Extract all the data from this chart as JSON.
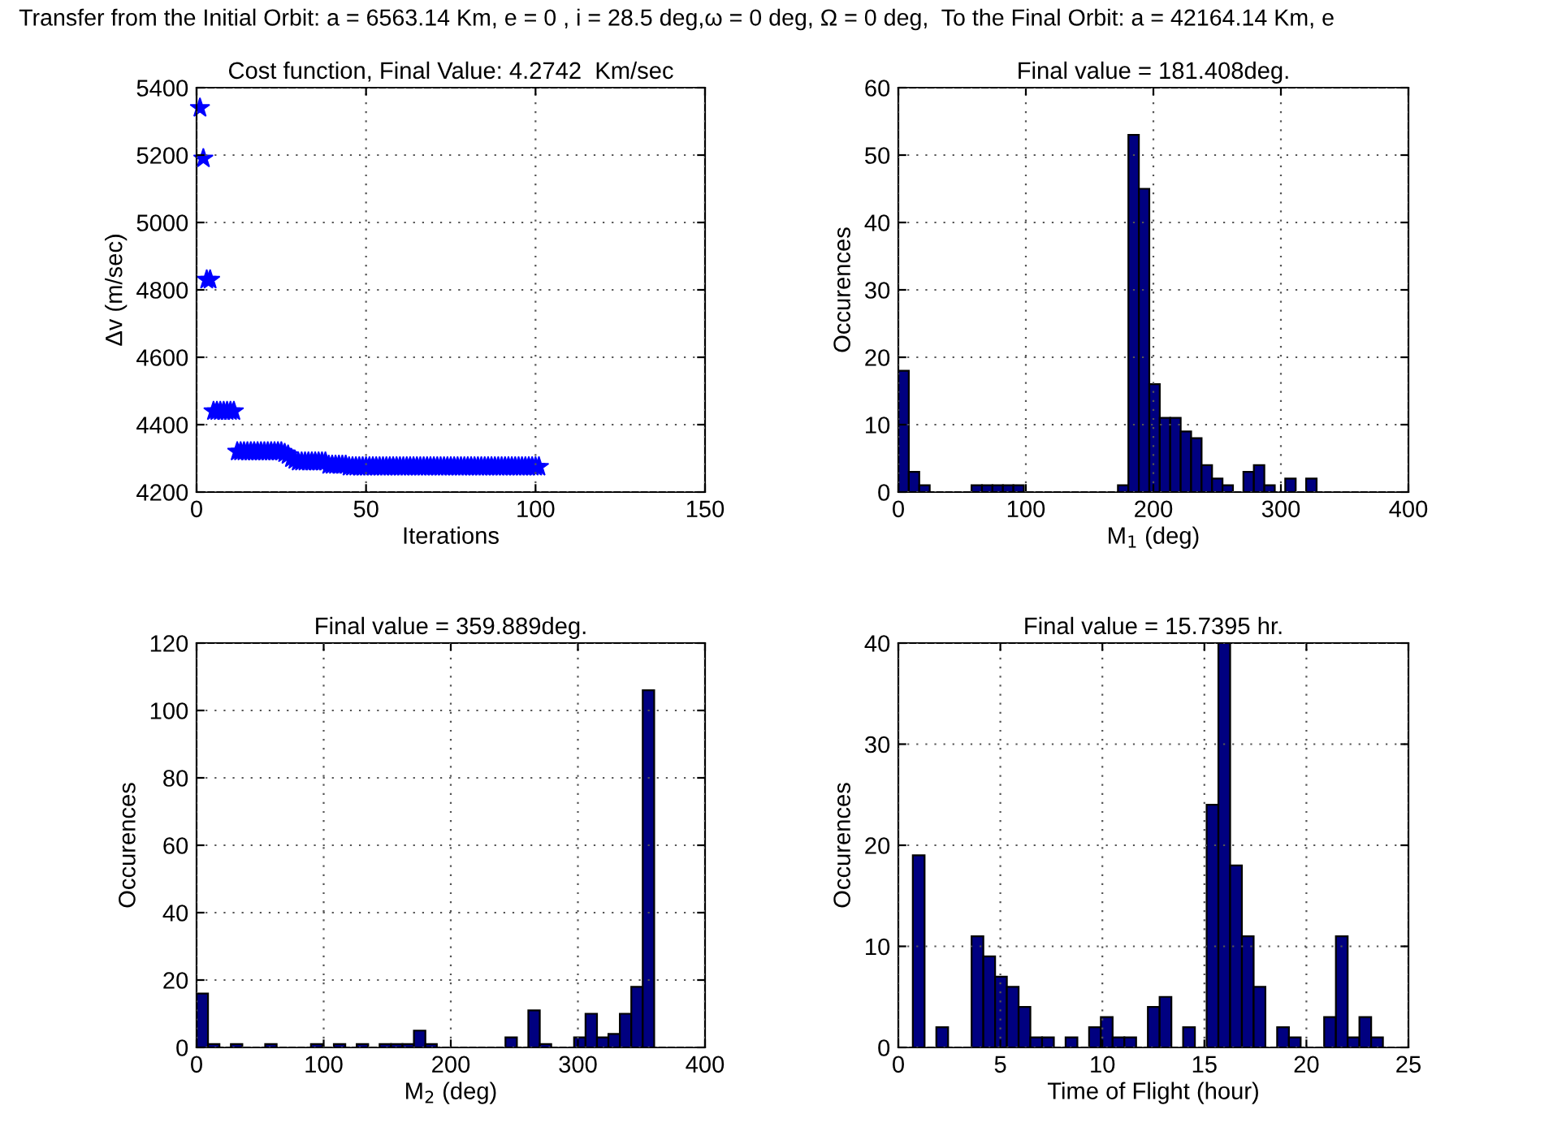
{
  "chart_data": [
    {
      "type": "other",
      "title": "Transfer from the Initial Orbit: a = 6563.14 Km, e = 0 , i = 28.5 deg,ω = 0 deg, Ω = 0 deg,  To the Final Orbit: a = 42164.14 Km, e"
    },
    {
      "type": "scatter",
      "title": "Cost function, Final Value: 4.2742  Km/sec",
      "xlabel": "Iterations",
      "ylabel": "Δv (m/sec)",
      "x": [
        1,
        2,
        3,
        4,
        5,
        6,
        7,
        8,
        9,
        10,
        11,
        12,
        13,
        14,
        15,
        16,
        17,
        18,
        19,
        20,
        21,
        22,
        23,
        24,
        25,
        26,
        27,
        28,
        29,
        30,
        31,
        32,
        33,
        34,
        35,
        36,
        37,
        38,
        39,
        40,
        41,
        42,
        43,
        44,
        45,
        46,
        47,
        48,
        49,
        50,
        51,
        52,
        53,
        54,
        55,
        56,
        57,
        58,
        59,
        60,
        61,
        62,
        63,
        64,
        65,
        66,
        67,
        68,
        69,
        70,
        71,
        72,
        73,
        74,
        75,
        76,
        77,
        78,
        79,
        80,
        81,
        82,
        83,
        84,
        85,
        86,
        87,
        88,
        89,
        90,
        91,
        92,
        93,
        94,
        95,
        96,
        97,
        98,
        99,
        100,
        101
      ],
      "series": [
        {
          "color": "#0000ff",
          "values": [
            5340,
            5190,
            4830,
            4830,
            4440,
            4440,
            4440,
            4440,
            4440,
            4440,
            4440,
            4320,
            4320,
            4320,
            4320,
            4320,
            4320,
            4320,
            4320,
            4320,
            4320,
            4320,
            4320,
            4320,
            4320,
            4315,
            4310,
            4300,
            4295,
            4290,
            4290,
            4290,
            4290,
            4290,
            4290,
            4290,
            4290,
            4290,
            4280,
            4280,
            4280,
            4280,
            4280,
            4280,
            4275,
            4275,
            4275,
            4275,
            4275,
            4275,
            4275,
            4275,
            4275,
            4275,
            4275,
            4275,
            4275,
            4275,
            4275,
            4275,
            4275,
            4275,
            4275,
            4275,
            4275,
            4275,
            4275,
            4275,
            4275,
            4275,
            4275,
            4275,
            4275,
            4275,
            4275,
            4275,
            4275,
            4275,
            4275,
            4275,
            4275,
            4275,
            4275,
            4275,
            4275,
            4275,
            4275,
            4275,
            4275,
            4275,
            4275,
            4275,
            4275,
            4275,
            4275,
            4275,
            4275,
            4275,
            4275,
            4275,
            4275
          ]
        }
      ],
      "marker": "star",
      "xlim": [
        0,
        150
      ],
      "xticks": [
        0,
        50,
        100,
        150
      ],
      "ylim": [
        4200,
        5400
      ],
      "yticks": [
        4200,
        4400,
        4600,
        4800,
        5000,
        5200,
        5400
      ],
      "grid": true
    },
    {
      "type": "histogram",
      "title": "Final value = 181.408deg.",
      "xlabel": "M$_{1}$ (deg)",
      "ylabel": "Occurences",
      "color": "#000080",
      "bins": [
        0,
        8.2,
        16.4,
        24.6,
        32.8,
        41,
        49.2,
        57.4,
        65.6,
        73.8,
        82,
        90.2,
        98.4,
        106.6,
        114.8,
        123,
        131.2,
        139.4,
        147.6,
        155.8,
        164,
        172.2,
        180.4,
        188.6,
        196.8,
        205,
        213.2,
        221.4,
        229.6,
        237.8,
        246,
        254.2,
        262.4,
        270.6,
        278.8,
        287,
        295.2,
        303.4,
        311.6,
        319.8,
        328
      ],
      "values": [
        18,
        3,
        1,
        0,
        0,
        0,
        0,
        1,
        1,
        1,
        1,
        1,
        0,
        0,
        0,
        0,
        0,
        0,
        0,
        0,
        0,
        1,
        53,
        45,
        16,
        11,
        11,
        9,
        8,
        4,
        2,
        1,
        0,
        3,
        4,
        1,
        0,
        2,
        0,
        2
      ],
      "xlim": [
        0,
        400
      ],
      "xticks": [
        0,
        100,
        200,
        300,
        400
      ],
      "ylim": [
        0,
        60
      ],
      "yticks": [
        0,
        10,
        20,
        30,
        40,
        50,
        60
      ],
      "grid": true
    },
    {
      "type": "histogram",
      "title": "Final value = 359.889deg.",
      "xlabel": "M$_{2}$ (deg)",
      "ylabel": "Occurences",
      "color": "#000080",
      "bins": [
        0,
        9,
        18,
        27,
        36,
        45,
        54,
        63,
        72,
        81,
        90,
        99,
        108,
        117,
        126,
        135,
        144,
        153,
        162,
        171,
        180,
        189,
        198,
        207,
        216,
        225,
        234,
        243,
        252,
        261,
        270,
        279,
        288,
        297,
        306,
        315,
        324,
        333,
        342,
        351,
        360
      ],
      "values": [
        16,
        1,
        0,
        1,
        0,
        0,
        1,
        0,
        0,
        0,
        1,
        0,
        1,
        0,
        1,
        0,
        1,
        1,
        1,
        5,
        1,
        0,
        0,
        0,
        0,
        0,
        0,
        3,
        0,
        11,
        1,
        0,
        0,
        3,
        10,
        3,
        4,
        10,
        18,
        106
      ],
      "xlim": [
        0,
        400
      ],
      "xticks": [
        0,
        100,
        200,
        300,
        400
      ],
      "ylim": [
        0,
        120
      ],
      "yticks": [
        0,
        20,
        40,
        60,
        80,
        100,
        120
      ],
      "grid": true
    },
    {
      "type": "histogram",
      "title": "Final value = 15.7395 hr.",
      "xlabel": "Time of Flight (hour)",
      "ylabel": "Occurences",
      "color": "#000080",
      "bins": [
        0.71,
        1.286,
        1.862,
        2.438,
        3.014,
        3.59,
        4.166,
        4.742,
        5.318,
        5.894,
        6.47,
        7.046,
        7.622,
        8.198,
        8.774,
        9.35,
        9.926,
        10.502,
        11.078,
        11.654,
        12.23,
        12.806,
        13.382,
        13.958,
        14.534,
        15.11,
        15.686,
        16.262,
        16.838,
        17.414,
        17.99,
        18.566,
        19.142,
        19.718,
        20.294,
        20.87,
        21.446,
        22.022,
        22.598,
        23.174,
        23.75
      ],
      "values": [
        19,
        0,
        2,
        0,
        0,
        11,
        9,
        7,
        6,
        4,
        1,
        1,
        0,
        1,
        0,
        2,
        3,
        1,
        1,
        0,
        4,
        5,
        0,
        2,
        0,
        24,
        40,
        18,
        11,
        6,
        0,
        2,
        1,
        0,
        0,
        3,
        11,
        1,
        3,
        1
      ],
      "xlim": [
        0,
        25
      ],
      "xticks": [
        0,
        5,
        10,
        15,
        20,
        25
      ],
      "ylim": [
        0,
        40
      ],
      "yticks": [
        0,
        10,
        20,
        30,
        40
      ],
      "grid": true
    }
  ]
}
